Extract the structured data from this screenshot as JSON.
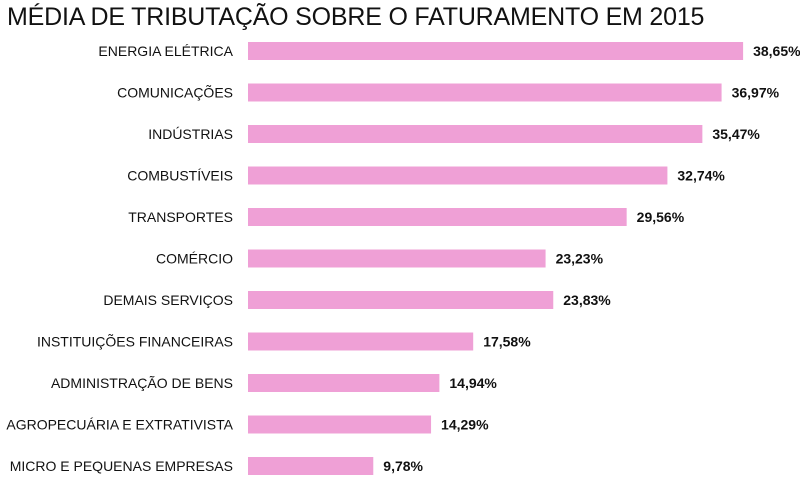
{
  "chart_data": {
    "type": "bar",
    "orientation": "horizontal",
    "title": "MÉDIA DE TRIBUTAÇÃO SOBRE O FATURAMENTO EM 2015",
    "categories": [
      "ENERGIA ELÉTRICA",
      "COMUNICAÇÕES",
      "INDÚSTRIAS",
      "COMBUSTÍVEIS",
      "TRANSPORTES",
      "COMÉRCIO",
      "DEMAIS SERVIÇOS",
      "INSTITUIÇÕES FINANCEIRAS",
      "ADMINISTRAÇÃO DE BENS",
      "AGROPECUÁRIA E EXTRATIVISTA",
      "MICRO E PEQUENAS EMPRESAS"
    ],
    "values": [
      38.65,
      36.97,
      35.47,
      32.74,
      29.56,
      23.23,
      23.83,
      17.58,
      14.94,
      14.29,
      9.78
    ],
    "value_labels": [
      "38,65%",
      "36,97%",
      "35,47%",
      "32,74%",
      "29,56%",
      "23,23%",
      "23,83%",
      "17,58%",
      "14,94%",
      "14,29%",
      "9,78%"
    ],
    "unit": "%",
    "bar_color": "#efa0d6",
    "grid": false,
    "legend": "none"
  }
}
